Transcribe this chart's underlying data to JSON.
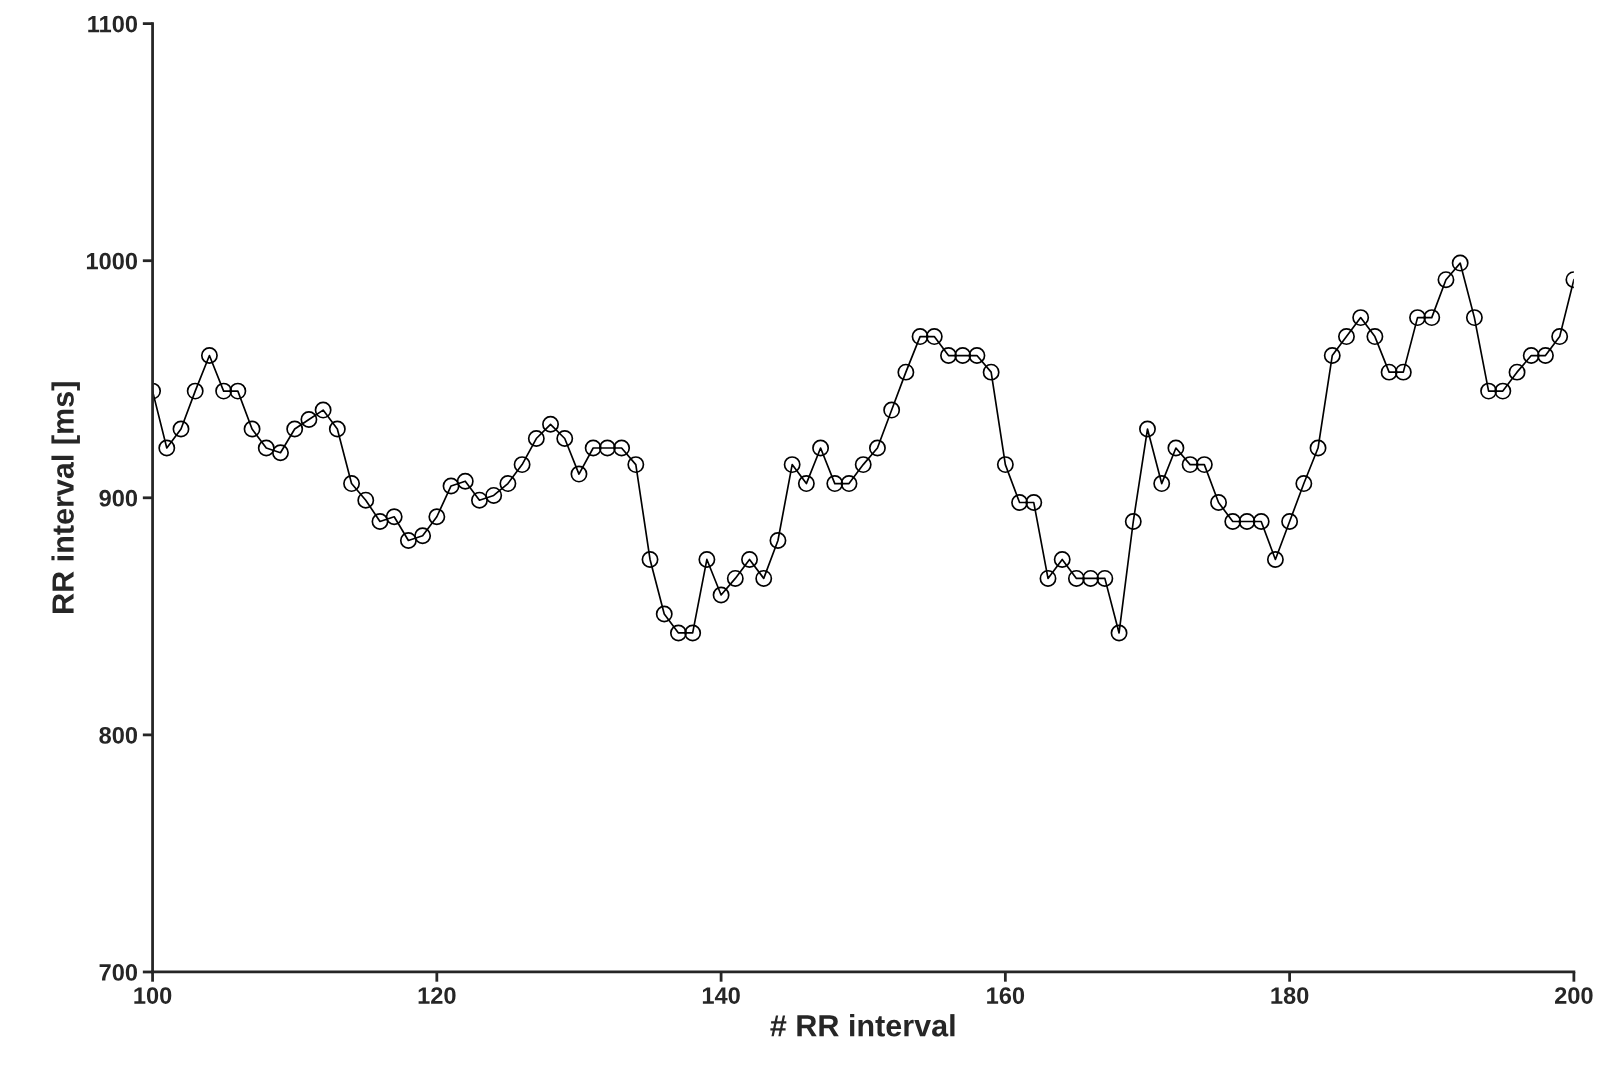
{
  "chart_data": {
    "type": "line",
    "xlabel": "# RR interval",
    "ylabel": "RR interval [ms]",
    "x": [
      100,
      101,
      102,
      103,
      104,
      105,
      106,
      107,
      108,
      109,
      110,
      111,
      112,
      113,
      114,
      115,
      116,
      117,
      118,
      119,
      120,
      121,
      122,
      123,
      124,
      125,
      126,
      127,
      128,
      129,
      130,
      131,
      132,
      133,
      134,
      135,
      136,
      137,
      138,
      139,
      140,
      141,
      142,
      143,
      144,
      145,
      146,
      147,
      148,
      149,
      150,
      151,
      152,
      153,
      154,
      155,
      156,
      157,
      158,
      159,
      160,
      161,
      162,
      163,
      164,
      165,
      166,
      167,
      168,
      169,
      170,
      171,
      172,
      173,
      174,
      175,
      176,
      177,
      178,
      179,
      180,
      181,
      182,
      183,
      184,
      185,
      186,
      187,
      188,
      189,
      190,
      191,
      192,
      193,
      194,
      195,
      196,
      197,
      198,
      199,
      200
    ],
    "series": [
      {
        "color": "#000000",
        "values": [
          945,
          921,
          929,
          945,
          960,
          945,
          945,
          929,
          921,
          919,
          929,
          933,
          937,
          929,
          906,
          899,
          890,
          892,
          882,
          884,
          892,
          905,
          907,
          899,
          901,
          906,
          914,
          925,
          931,
          925,
          910,
          921,
          921,
          921,
          914,
          874,
          851,
          843,
          843,
          874,
          859,
          866,
          874,
          866,
          882,
          914,
          906,
          921,
          906,
          906,
          914,
          921,
          937,
          953,
          968,
          968,
          960,
          960,
          960,
          953,
          914,
          898,
          898,
          866,
          874,
          866,
          866,
          866,
          843,
          890,
          929,
          906,
          921,
          914,
          914,
          898,
          890,
          890,
          890,
          874,
          890,
          906,
          921,
          960,
          968,
          976,
          968,
          953,
          953,
          976,
          976,
          992,
          999,
          976,
          945,
          945,
          953,
          960,
          960,
          968,
          992
        ]
      }
    ],
    "xlim": [
      100,
      200
    ],
    "xticks": [
      100,
      120,
      140,
      160,
      180,
      200
    ],
    "ylim": [
      700,
      1100
    ],
    "yticks": [
      700,
      800,
      900,
      1000,
      1100
    ],
    "grid": false,
    "legend": false,
    "marker": "circle",
    "line_style": "solid"
  }
}
